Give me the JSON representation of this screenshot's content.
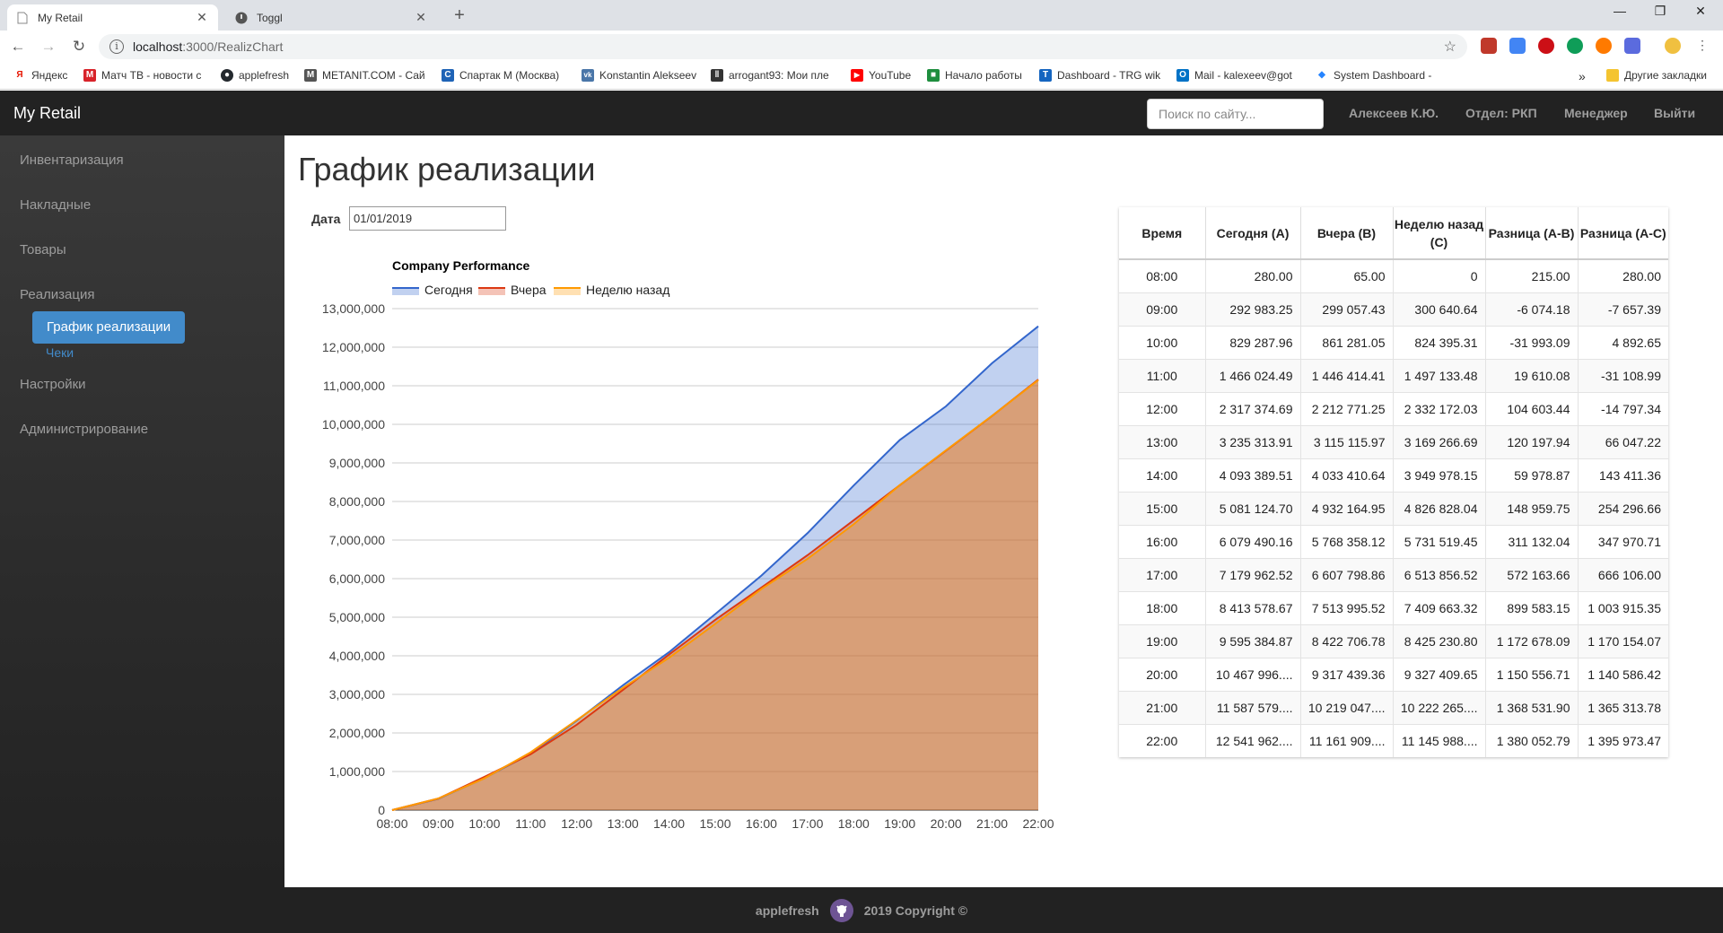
{
  "browser": {
    "tabs": [
      {
        "title": "My Retail",
        "active": true,
        "icon": "page-icon"
      },
      {
        "title": "Toggl",
        "active": false,
        "icon": "toggl-icon"
      }
    ],
    "url_host": "localhost",
    "url_path": ":3000/RealizChart",
    "bookmarks": [
      {
        "label": "Яндекс",
        "icon": "yandex-icon",
        "color": "#e61400",
        "glyph": "Я"
      },
      {
        "label": "Матч ТВ - новости с",
        "icon": "matchtv-icon",
        "color": "#d8232a",
        "glyph": "M"
      },
      {
        "label": "applefresh",
        "icon": "github-icon",
        "color": "#24292e",
        "glyph": "●"
      },
      {
        "label": "METANIT.COM - Сай",
        "icon": "metanit-icon",
        "color": "#555555",
        "glyph": "M"
      },
      {
        "label": "Спартак М (Москва)",
        "icon": "spartak-icon",
        "color": "#1e63b6",
        "glyph": "С"
      },
      {
        "label": "Konstantin Alekseev",
        "icon": "vk-icon",
        "color": "#4a76a8",
        "glyph": "vk"
      },
      {
        "label": "arrogant93: Мои пле",
        "icon": "pause-icon",
        "color": "#333333",
        "glyph": "‖"
      },
      {
        "label": "YouTube",
        "icon": "youtube-icon",
        "color": "#ff0000",
        "glyph": "▶"
      },
      {
        "label": "Начало работы",
        "icon": "sheet-icon",
        "color": "#1e8e3e",
        "glyph": "■"
      },
      {
        "label": "Dashboard - TRG wik",
        "icon": "trg-icon",
        "color": "#1565c0",
        "glyph": "T"
      },
      {
        "label": "Mail - kalexeev@got",
        "icon": "outlook-icon",
        "color": "#0072c6",
        "glyph": "O"
      },
      {
        "label": "System Dashboard -",
        "icon": "jira-icon",
        "color": "#2684ff",
        "glyph": "◆"
      }
    ],
    "other_bookmarks": "Другие закладки",
    "overflow": "»"
  },
  "app": {
    "brand": "My Retail",
    "search_placeholder": "Поиск по сайту...",
    "user": "Алексеев К.Ю.",
    "department": "Отдел: РКП",
    "role": "Менеджер",
    "logout": "Выйти"
  },
  "sidebar": {
    "items": [
      "Инвентаризация",
      "Накладные",
      "Товары",
      "Реализация",
      "Настройки",
      "Администрирование"
    ],
    "active_sub": "График реализации",
    "sub_link": "Чеки"
  },
  "page": {
    "title": "График реализации",
    "date_label": "Дата",
    "date_value": "01/01/2019"
  },
  "chart_data": {
    "type": "area",
    "title": "Company Performance",
    "categories": [
      "08:00",
      "09:00",
      "10:00",
      "11:00",
      "12:00",
      "13:00",
      "14:00",
      "15:00",
      "16:00",
      "17:00",
      "18:00",
      "19:00",
      "20:00",
      "21:00",
      "22:00"
    ],
    "series": [
      {
        "name": "Сегодня",
        "color": "#3366cc",
        "values": [
          280,
          292983.25,
          829287.96,
          1466024.49,
          2317374.69,
          3235313.91,
          4093389.51,
          5081124.7,
          6079490.16,
          7179962.52,
          8413578.67,
          9595384.87,
          10467996,
          11587579,
          12541962
        ]
      },
      {
        "name": "Вчера",
        "color": "#dc3912",
        "values": [
          65,
          299057.43,
          861281.05,
          1446414.41,
          2212771.25,
          3115115.97,
          4033410.64,
          4932164.95,
          5768358.12,
          6607798.86,
          7513995.52,
          8422706.78,
          9317439.36,
          10219047,
          11161909
        ]
      },
      {
        "name": "Неделю назад",
        "color": "#ff9900",
        "values": [
          0,
          300640.64,
          824395.31,
          1497133.48,
          2332172.03,
          3169266.69,
          3949978.15,
          4826828.04,
          5731519.45,
          6513856.52,
          7409663.32,
          8425230.8,
          9327409.65,
          10222265,
          11145988
        ]
      }
    ],
    "ylim": [
      0,
      13000000
    ],
    "yticks": [
      "0",
      "1,000,000",
      "2,000,000",
      "3,000,000",
      "4,000,000",
      "5,000,000",
      "6,000,000",
      "7,000,000",
      "8,000,000",
      "9,000,000",
      "10,000,000",
      "11,000,000",
      "12,000,000",
      "13,000,000"
    ],
    "grid": true,
    "legend": "top-left"
  },
  "table": {
    "headers": [
      "Время",
      "Сегодня (A)",
      "Вчера (B)",
      "Неделю назад (C)",
      "Разница (A-B)",
      "Разница (A-C)"
    ],
    "rows": [
      [
        "08:00",
        "280.00",
        "65.00",
        "0",
        "215.00",
        "280.00"
      ],
      [
        "09:00",
        "292 983.25",
        "299 057.43",
        "300 640.64",
        "-6 074.18",
        "-7 657.39"
      ],
      [
        "10:00",
        "829 287.96",
        "861 281.05",
        "824 395.31",
        "-31 993.09",
        "4 892.65"
      ],
      [
        "11:00",
        "1 466 024.49",
        "1 446 414.41",
        "1 497 133.48",
        "19 610.08",
        "-31 108.99"
      ],
      [
        "12:00",
        "2 317 374.69",
        "2 212 771.25",
        "2 332 172.03",
        "104 603.44",
        "-14 797.34"
      ],
      [
        "13:00",
        "3 235 313.91",
        "3 115 115.97",
        "3 169 266.69",
        "120 197.94",
        "66 047.22"
      ],
      [
        "14:00",
        "4 093 389.51",
        "4 033 410.64",
        "3 949 978.15",
        "59 978.87",
        "143 411.36"
      ],
      [
        "15:00",
        "5 081 124.70",
        "4 932 164.95",
        "4 826 828.04",
        "148 959.75",
        "254 296.66"
      ],
      [
        "16:00",
        "6 079 490.16",
        "5 768 358.12",
        "5 731 519.45",
        "311 132.04",
        "347 970.71"
      ],
      [
        "17:00",
        "7 179 962.52",
        "6 607 798.86",
        "6 513 856.52",
        "572 163.66",
        "666 106.00"
      ],
      [
        "18:00",
        "8 413 578.67",
        "7 513 995.52",
        "7 409 663.32",
        "899 583.15",
        "1 003 915.35"
      ],
      [
        "19:00",
        "9 595 384.87",
        "8 422 706.78",
        "8 425 230.80",
        "1 172 678.09",
        "1 170 154.07"
      ],
      [
        "20:00",
        "10 467 996....",
        "9 317 439.36",
        "9 327 409.65",
        "1 150 556.71",
        "1 140 586.42"
      ],
      [
        "21:00",
        "11 587 579....",
        "10 219 047....",
        "10 222 265....",
        "1 368 531.90",
        "1 365 313.78"
      ],
      [
        "22:00",
        "12 541 962....",
        "11 161 909....",
        "11 145 988....",
        "1 380 052.79",
        "1 395 973.47"
      ]
    ]
  },
  "footer": {
    "left": "applefresh",
    "right": "2019 Copyright ©"
  }
}
